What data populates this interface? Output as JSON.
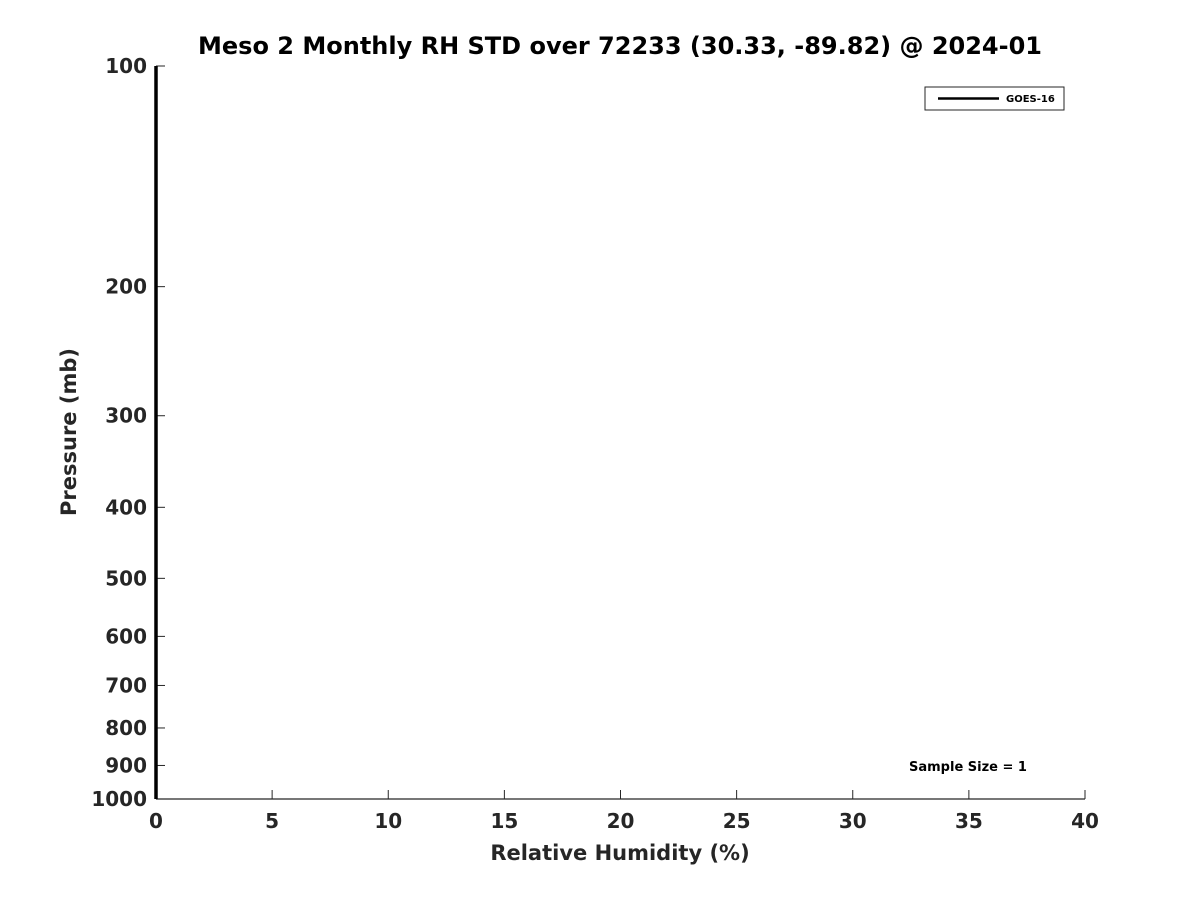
{
  "chart_data": {
    "type": "line",
    "title": "Meso 2 Monthly RH STD over 72233 (30.33, -89.82) @ 2024-01",
    "xlabel": "Relative Humidity (%)",
    "ylabel": "Pressure (mb)",
    "xlim": [
      0,
      40
    ],
    "ylim": [
      1000,
      100
    ],
    "y_scale": "log",
    "y_reversed": true,
    "x_ticks": [
      0,
      5,
      10,
      15,
      20,
      25,
      30,
      35,
      40
    ],
    "x_tick_labels": [
      "0",
      "5",
      "10",
      "15",
      "20",
      "25",
      "30",
      "35",
      "40"
    ],
    "y_ticks": [
      100,
      200,
      300,
      400,
      500,
      600,
      700,
      800,
      900,
      1000
    ],
    "y_tick_labels": [
      "100",
      "200",
      "300",
      "400",
      "500",
      "600",
      "700",
      "800",
      "900",
      "1000"
    ],
    "grid": false,
    "legend_position": "top-right",
    "series": [
      {
        "name": "GOES-16",
        "color": "#000000",
        "x": [
          0,
          0
        ],
        "y": [
          1000,
          100
        ]
      }
    ],
    "annotations": [
      {
        "text": "Sample Size = 1"
      }
    ]
  }
}
